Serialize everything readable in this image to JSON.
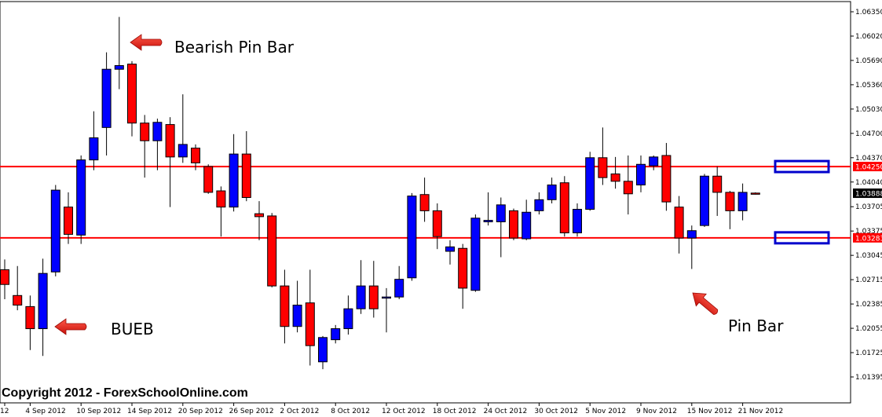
{
  "chart_data": {
    "type": "candlestick",
    "price_axis": {
      "ylim": [
        1.01395,
        1.0635
      ],
      "ticks": [
        "1.06350",
        "1.06020",
        "1.05690",
        "1.05360",
        "1.05030",
        "1.04700",
        "1.04370",
        "1.04040",
        "1.03705",
        "1.03375",
        "1.03045",
        "1.02715",
        "1.02385",
        "1.02055",
        "1.01725",
        "1.01395"
      ]
    },
    "date_labels": [
      {
        "label": "12",
        "index": 0
      },
      {
        "label": "4 Sep 2012",
        "index": 2
      },
      {
        "label": "10 Sep 2012",
        "index": 6
      },
      {
        "label": "14 Sep 2012",
        "index": 10
      },
      {
        "label": "20 Sep 2012",
        "index": 14
      },
      {
        "label": "26 Sep 2012",
        "index": 18
      },
      {
        "label": "2 Oct 2012",
        "index": 22
      },
      {
        "label": "8 Oct 2012",
        "index": 26
      },
      {
        "label": "12 Oct 2012",
        "index": 30
      },
      {
        "label": "18 Oct 2012",
        "index": 34
      },
      {
        "label": "24 Oct 2012",
        "index": 38
      },
      {
        "label": "30 Oct 2012",
        "index": 42
      },
      {
        "label": "5 Nov 2012",
        "index": 46
      },
      {
        "label": "9 Nov 2012",
        "index": 50
      },
      {
        "label": "15 Nov 2012",
        "index": 54
      },
      {
        "label": "21 Nov 2012",
        "index": 58
      }
    ],
    "candles": [
      {
        "o": 1.0285,
        "h": 1.0299,
        "l": 1.0245,
        "c": 1.0265
      },
      {
        "o": 1.025,
        "h": 1.029,
        "l": 1.023,
        "c": 1.0237
      },
      {
        "o": 1.0235,
        "h": 1.025,
        "l": 1.0176,
        "c": 1.0205
      },
      {
        "o": 1.0205,
        "h": 1.03,
        "l": 1.0168,
        "c": 1.028
      },
      {
        "o": 1.0282,
        "h": 1.04,
        "l": 1.0276,
        "c": 1.0393
      },
      {
        "o": 1.037,
        "h": 1.039,
        "l": 1.032,
        "c": 1.0333
      },
      {
        "o": 1.0332,
        "h": 1.044,
        "l": 1.032,
        "c": 1.0434
      },
      {
        "o": 1.0434,
        "h": 1.05,
        "l": 1.042,
        "c": 1.0464
      },
      {
        "o": 1.0478,
        "h": 1.058,
        "l": 1.044,
        "c": 1.0557
      },
      {
        "o": 1.0557,
        "h": 1.0628,
        "l": 1.053,
        "c": 1.0562
      },
      {
        "o": 1.0564,
        "h": 1.0568,
        "l": 1.0466,
        "c": 1.0484
      },
      {
        "o": 1.0484,
        "h": 1.0495,
        "l": 1.041,
        "c": 1.046
      },
      {
        "o": 1.046,
        "h": 1.049,
        "l": 1.042,
        "c": 1.0485
      },
      {
        "o": 1.0482,
        "h": 1.0492,
        "l": 1.037,
        "c": 1.0438
      },
      {
        "o": 1.0438,
        "h": 1.0523,
        "l": 1.043,
        "c": 1.0455
      },
      {
        "o": 1.045,
        "h": 1.0455,
        "l": 1.042,
        "c": 1.043
      },
      {
        "o": 1.0425,
        "h": 1.0428,
        "l": 1.0388,
        "c": 1.039
      },
      {
        "o": 1.0392,
        "h": 1.0398,
        "l": 1.033,
        "c": 1.037
      },
      {
        "o": 1.037,
        "h": 1.0469,
        "l": 1.0364,
        "c": 1.0442
      },
      {
        "o": 1.0442,
        "h": 1.0473,
        "l": 1.0378,
        "c": 1.0383
      },
      {
        "o": 1.0361,
        "h": 1.0378,
        "l": 1.0325,
        "c": 1.0357
      },
      {
        "o": 1.0358,
        "h": 1.0362,
        "l": 1.0261,
        "c": 1.0263
      },
      {
        "o": 1.0263,
        "h": 1.0285,
        "l": 1.0185,
        "c": 1.0208
      },
      {
        "o": 1.0208,
        "h": 1.027,
        "l": 1.02,
        "c": 1.0237
      },
      {
        "o": 1.024,
        "h": 1.0285,
        "l": 1.0155,
        "c": 1.0182
      },
      {
        "o": 1.016,
        "h": 1.0195,
        "l": 1.015,
        "c": 1.0193
      },
      {
        "o": 1.019,
        "h": 1.021,
        "l": 1.0185,
        "c": 1.0205
      },
      {
        "o": 1.0205,
        "h": 1.025,
        "l": 1.0197,
        "c": 1.0232
      },
      {
        "o": 1.0232,
        "h": 1.0298,
        "l": 1.0225,
        "c": 1.0263
      },
      {
        "o": 1.0263,
        "h": 1.0297,
        "l": 1.022,
        "c": 1.0232
      },
      {
        "o": 1.0248,
        "h": 1.026,
        "l": 1.02,
        "c": 1.0248
      },
      {
        "o": 1.0248,
        "h": 1.029,
        "l": 1.0245,
        "c": 1.0272
      },
      {
        "o": 1.0274,
        "h": 1.0389,
        "l": 1.027,
        "c": 1.0385
      },
      {
        "o": 1.0387,
        "h": 1.041,
        "l": 1.035,
        "c": 1.0365
      },
      {
        "o": 1.0365,
        "h": 1.0375,
        "l": 1.0313,
        "c": 1.033
      },
      {
        "o": 1.031,
        "h": 1.0325,
        "l": 1.0292,
        "c": 1.0316
      },
      {
        "o": 1.0314,
        "h": 1.032,
        "l": 1.0232,
        "c": 1.026
      },
      {
        "o": 1.0257,
        "h": 1.036,
        "l": 1.0255,
        "c": 1.0355
      },
      {
        "o": 1.035,
        "h": 1.039,
        "l": 1.0345,
        "c": 1.0352
      },
      {
        "o": 1.035,
        "h": 1.0383,
        "l": 1.0302,
        "c": 1.0373
      },
      {
        "o": 1.0365,
        "h": 1.0368,
        "l": 1.0325,
        "c": 1.0328
      },
      {
        "o": 1.0327,
        "h": 1.038,
        "l": 1.0325,
        "c": 1.0363
      },
      {
        "o": 1.0365,
        "h": 1.039,
        "l": 1.036,
        "c": 1.038
      },
      {
        "o": 1.038,
        "h": 1.041,
        "l": 1.0375,
        "c": 1.04
      },
      {
        "o": 1.0403,
        "h": 1.0412,
        "l": 1.033,
        "c": 1.0335
      },
      {
        "o": 1.0335,
        "h": 1.0375,
        "l": 1.033,
        "c": 1.0367
      },
      {
        "o": 1.0367,
        "h": 1.0445,
        "l": 1.0365,
        "c": 1.0437
      },
      {
        "o": 1.0437,
        "h": 1.0478,
        "l": 1.04,
        "c": 1.041
      },
      {
        "o": 1.0415,
        "h": 1.0438,
        "l": 1.0395,
        "c": 1.0405
      },
      {
        "o": 1.0405,
        "h": 1.044,
        "l": 1.036,
        "c": 1.0388
      },
      {
        "o": 1.04,
        "h": 1.044,
        "l": 1.039,
        "c": 1.0428
      },
      {
        "o": 1.0426,
        "h": 1.044,
        "l": 1.042,
        "c": 1.0438
      },
      {
        "o": 1.044,
        "h": 1.0457,
        "l": 1.0365,
        "c": 1.0377
      },
      {
        "o": 1.037,
        "h": 1.0385,
        "l": 1.0307,
        "c": 1.0328
      },
      {
        "o": 1.0328,
        "h": 1.0345,
        "l": 1.0286,
        "c": 1.0338
      },
      {
        "o": 1.0345,
        "h": 1.0415,
        "l": 1.0343,
        "c": 1.0412
      },
      {
        "o": 1.0412,
        "h": 1.0425,
        "l": 1.0358,
        "c": 1.039
      },
      {
        "o": 1.039,
        "h": 1.0392,
        "l": 1.034,
        "c": 1.0365
      },
      {
        "o": 1.0365,
        "h": 1.0402,
        "l": 1.0352,
        "c": 1.039
      },
      {
        "o": 1.0389,
        "h": 1.039,
        "l": 1.0387,
        "c": 1.0388
      }
    ],
    "horizontal_levels": [
      1.0425,
      1.03283
    ],
    "level_tags": [
      "1.04250",
      "1.03283"
    ],
    "current_price": 1.03888,
    "current_price_tag": "1.03888",
    "colors": {
      "bull": "#0000ff",
      "bear": "#ff0000",
      "level": "#ff0000",
      "highlight": "#0000cc"
    },
    "annotations": [
      {
        "text": "Bearish Pin Bar",
        "points_to_index": 9
      },
      {
        "text": "BUEB",
        "points_to_index": 3
      },
      {
        "text": "Pin Bar",
        "points_to_index": 54
      }
    ],
    "highlight_boxes": [
      1.0425,
      1.03283
    ]
  },
  "copyright": "Copyright 2012 - ForexSchoolOnline.com"
}
